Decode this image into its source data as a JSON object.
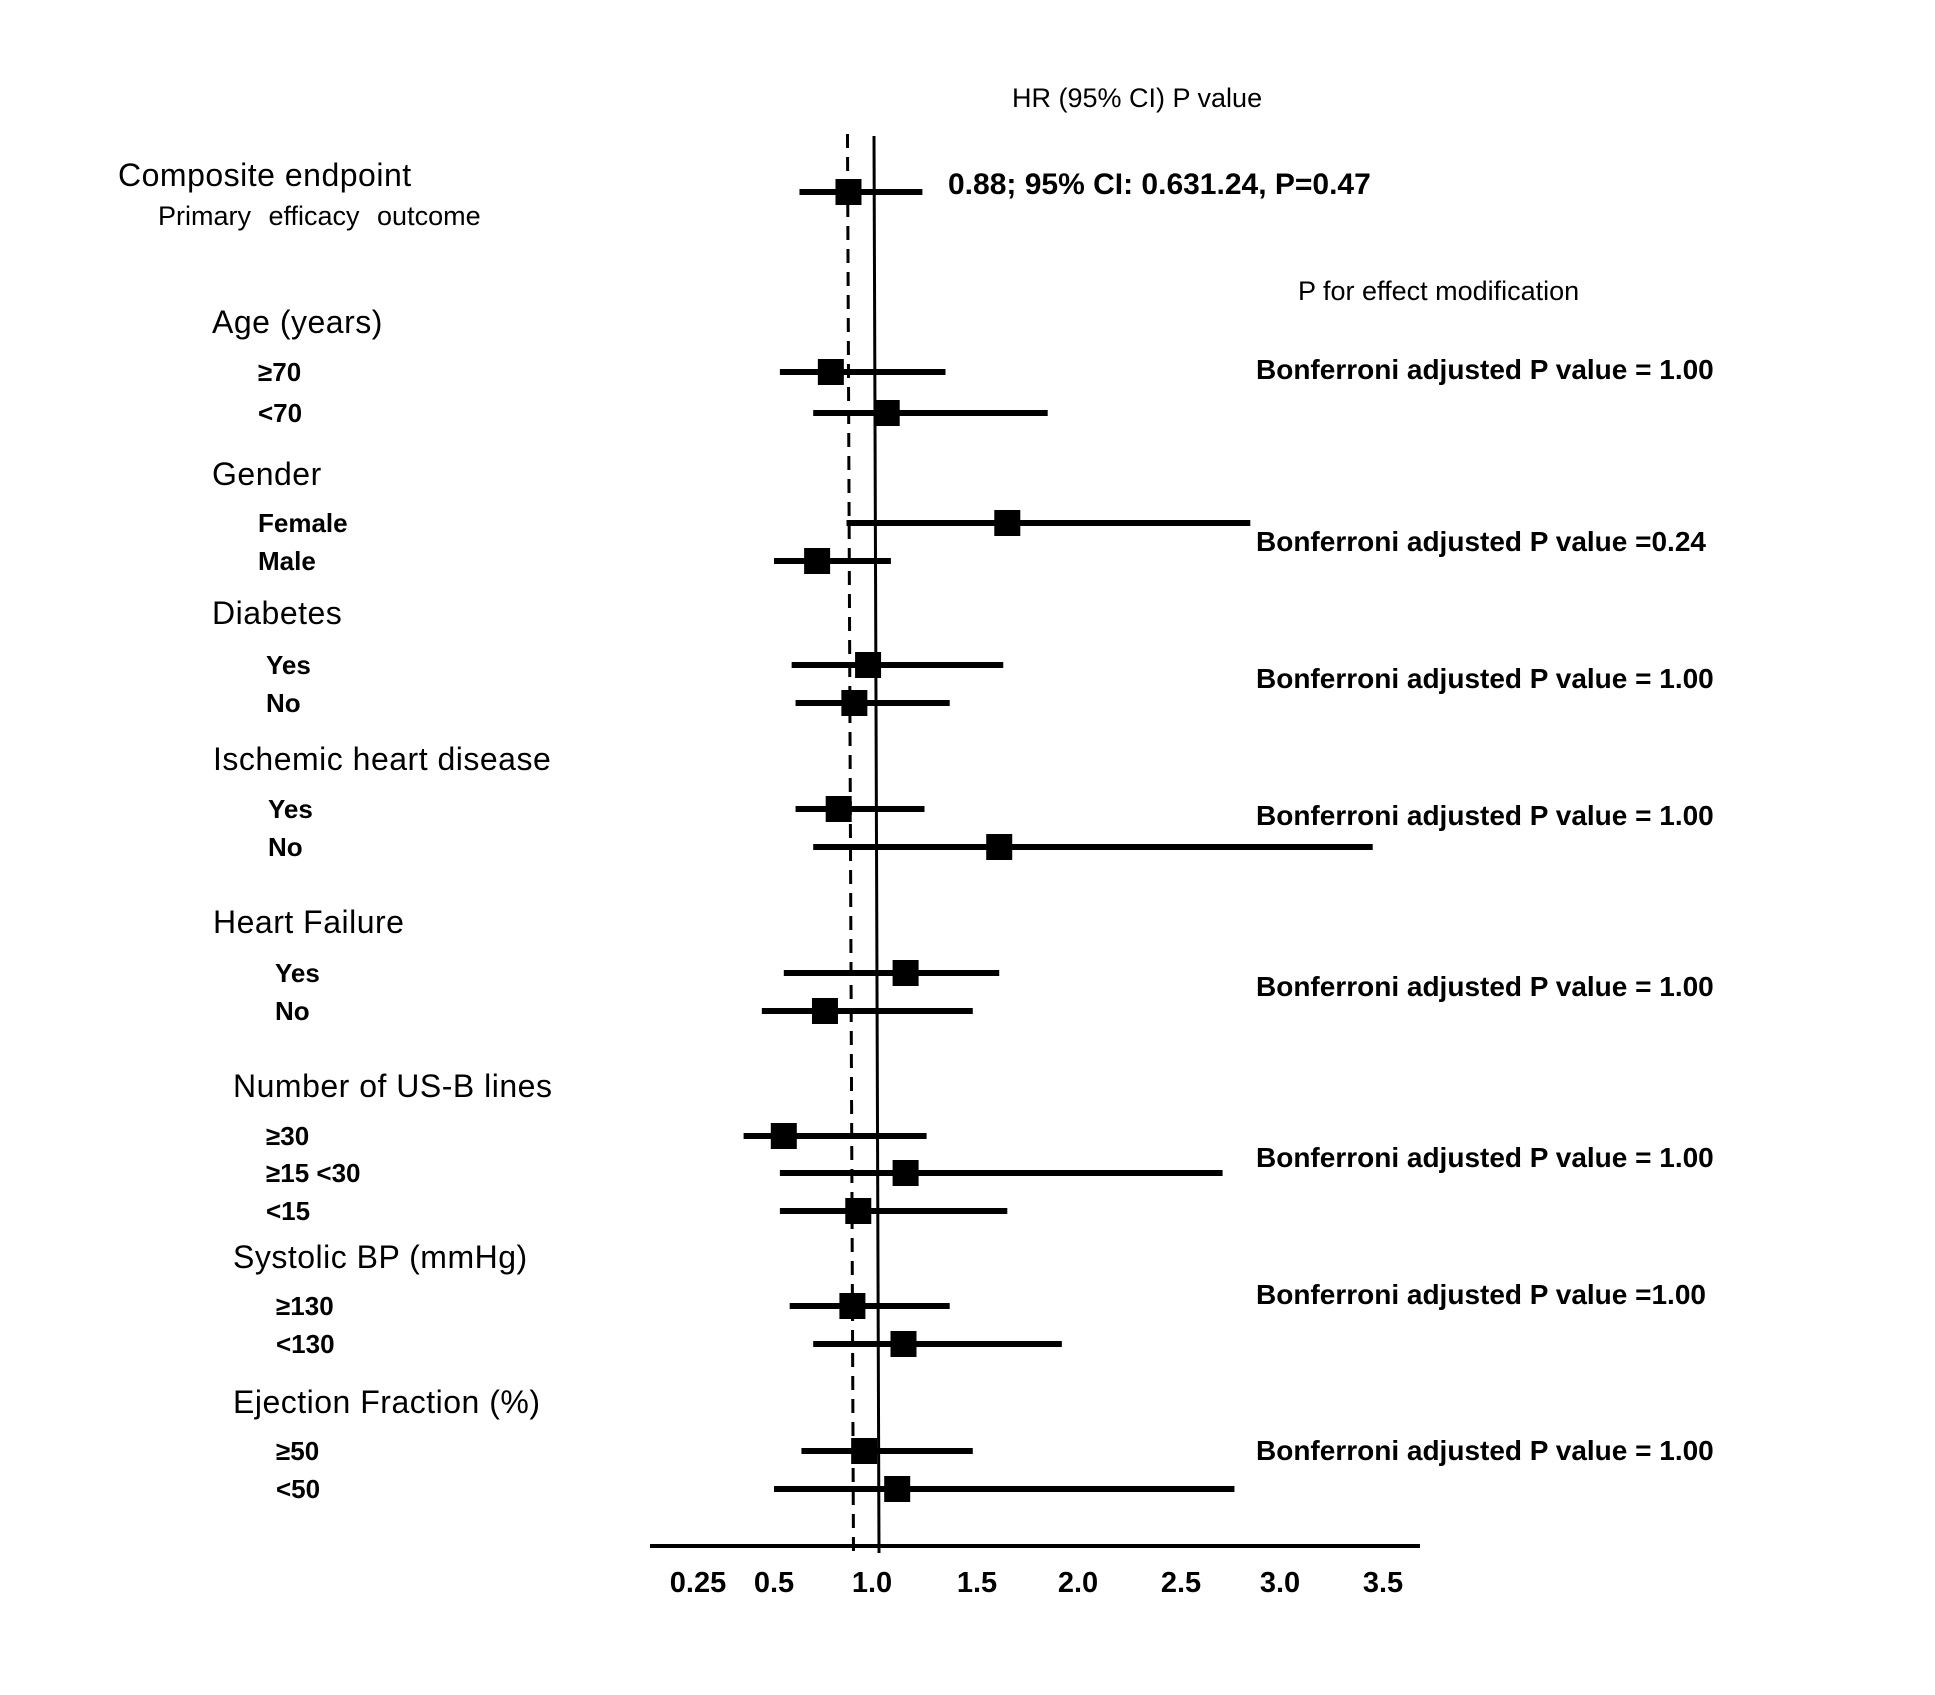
{
  "chart_data": {
    "type": "forest",
    "header": {
      "hr_column": "HR (95% CI) P value",
      "effect_modification": "P for effect modification"
    },
    "reference_line": 1.0,
    "overall_line": 0.88,
    "x_axis": {
      "ticks": [
        {
          "value": 0.25,
          "label": "0.25"
        },
        {
          "value": 0.5,
          "label": "0.5"
        },
        {
          "value": 1.0,
          "label": "1.0"
        },
        {
          "value": 1.5,
          "label": "1.5"
        },
        {
          "value": 2.0,
          "label": "2.0"
        },
        {
          "value": 2.5,
          "label": "2.5"
        },
        {
          "value": 3.0,
          "label": "3.0"
        },
        {
          "value": 3.5,
          "label": "3.5"
        }
      ],
      "range": [
        0.0,
        3.6
      ]
    },
    "composite": {
      "title": "Composite endpoint",
      "label": "Primary efficacy outcome",
      "hr": 0.88,
      "lo": 0.63,
      "hi": 1.24,
      "text": "0.88; 95% CI: 0.631.24, P=0.47"
    },
    "groups": [
      {
        "title": "Age (years)",
        "p_text": "Bonferroni adjusted P value = 1.00",
        "rows": [
          {
            "label": "≥70",
            "hr": 0.79,
            "lo": 0.53,
            "hi": 1.35
          },
          {
            "label": "<70",
            "hr": 1.07,
            "lo": 0.7,
            "hi": 1.85
          }
        ]
      },
      {
        "title": "Gender",
        "p_text": "Bonferroni adjusted P value =0.24",
        "rows": [
          {
            "label": "Female",
            "hr": 1.65,
            "lo": 0.87,
            "hi": 2.85
          },
          {
            "label": "Male",
            "hr": 0.72,
            "lo": 0.5,
            "hi": 1.09
          }
        ]
      },
      {
        "title": "Diabetes",
        "p_text": "Bonferroni adjusted P value = 1.00",
        "rows": [
          {
            "label": "Yes",
            "hr": 0.98,
            "lo": 0.59,
            "hi": 1.63
          },
          {
            "label": "No",
            "hr": 0.91,
            "lo": 0.61,
            "hi": 1.37
          }
        ]
      },
      {
        "title": "Ischemic heart disease",
        "p_text": "Bonferroni adjusted P value = 1.00",
        "rows": [
          {
            "label": "Yes",
            "hr": 0.83,
            "lo": 0.61,
            "hi": 1.25
          },
          {
            "label": "No",
            "hr": 1.61,
            "lo": 0.7,
            "hi": 3.45
          }
        ]
      },
      {
        "title": "Heart Failure",
        "p_text": "Bonferroni adjusted P value = 1.00",
        "rows": [
          {
            "label": "Yes",
            "hr": 1.16,
            "lo": 0.55,
            "hi": 1.61
          },
          {
            "label": "No",
            "hr": 0.76,
            "lo": 0.46,
            "hi": 1.48
          }
        ]
      },
      {
        "title": "Number of US-B lines",
        "p_text": "Bonferroni adjusted P value = 1.00",
        "rows": [
          {
            "label": "≥30",
            "hr": 0.55,
            "lo": 0.4,
            "hi": 1.26
          },
          {
            "label": "≥15 <30",
            "hr": 1.16,
            "lo": 0.53,
            "hi": 2.71
          },
          {
            "label": "<15",
            "hr": 0.93,
            "lo": 0.53,
            "hi": 1.65
          }
        ]
      },
      {
        "title": "Systolic BP (mmHg)",
        "p_text": "Bonferroni adjusted P value =1.00",
        "rows": [
          {
            "label": "≥130",
            "hr": 0.9,
            "lo": 0.58,
            "hi": 1.37
          },
          {
            "label": "<130",
            "hr": 1.15,
            "lo": 0.7,
            "hi": 1.92
          }
        ]
      },
      {
        "title": "Ejection Fraction (%)",
        "p_text": "Bonferroni adjusted P value = 1.00",
        "rows": [
          {
            "label": "≥50",
            "hr": 0.96,
            "lo": 0.64,
            "hi": 1.48
          },
          {
            "label": "<50",
            "hr": 1.12,
            "lo": 0.5,
            "hi": 2.77
          }
        ]
      }
    ]
  }
}
